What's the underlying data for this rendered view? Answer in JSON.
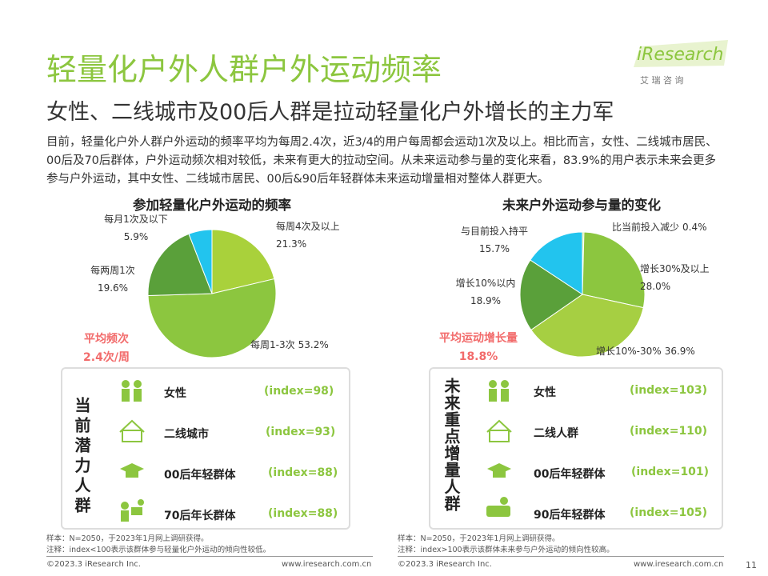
{
  "header": {
    "title": "轻量化户外人群户外运动频率",
    "subtitle": "女性、二线城市及00后人群是拉动轻量化户外增长的主力军",
    "logo": "iResearch",
    "logo_sub": "艾 瑞 咨 询"
  },
  "paragraph": "目前，轻量化户外人群户外运动的频率平均为每周2.4次，近3/4的用户每周都会运动1次及以上。相比而言，女性、二线城市居民、00后及70后群体，户外运动频次相对较低，未来有更大的拉动空间。从未来运动参与量的变化来看，83.9%的用户表示未来会更多参与户外运动，其中女性、二线城市居民、00后&90后年轻群体未来运动增量相对整体人群更大。",
  "chart_data": [
    {
      "type": "pie",
      "title": "参加轻量化户外运动的频率",
      "categories": [
        "每周4次及以上",
        "每周1-3次",
        "每两周1次",
        "每月1次及以下"
      ],
      "values": [
        21.3,
        53.2,
        19.6,
        5.9
      ],
      "value_labels": [
        "21.3%",
        "53.2%",
        "19.6%",
        "5.9%"
      ],
      "colors": [
        "#a9d13b",
        "#8cc63f",
        "#5aa03a",
        "#22c4ee"
      ],
      "annotation": [
        "平均频次",
        "2.4次/周"
      ]
    },
    {
      "type": "pie",
      "title": "未来户外运动参与量的变化",
      "categories": [
        "比当前投入减少",
        "增长30%及以上",
        "增长10%-30%",
        "增长10%以内",
        "与目前投入持平"
      ],
      "values": [
        0.4,
        28.0,
        36.9,
        18.9,
        15.7
      ],
      "value_labels": [
        "0.4%",
        "28.0%",
        "36.9%",
        "18.9%",
        "15.7%"
      ],
      "colors": [
        "#c8e06a",
        "#8cc63f",
        "#a6cf42",
        "#5aa03a",
        "#22c4ee"
      ],
      "annotation": [
        "平均运动增长量",
        "18.8%"
      ]
    }
  ],
  "panels": [
    {
      "heading": "当前潜力人群",
      "rows": [
        [
          "女性",
          "(index=98)"
        ],
        [
          "二线城市",
          "(index=93)"
        ],
        [
          "00后年轻群体",
          "(index=88)"
        ],
        [
          "70后年长群体",
          "(index=88)"
        ]
      ],
      "notes": [
        "样本：N=2050，于2023年1月网上调研获得。",
        "注释：index<100表示该群体参与轻量化户外运动的倾向性较低。"
      ]
    },
    {
      "heading": "未来重点增量人群",
      "rows": [
        [
          "女性",
          "(index=103)"
        ],
        [
          "二线人群",
          "(index=110)"
        ],
        [
          "00后年轻群体",
          "(index=101)"
        ],
        [
          "90后年轻群体",
          "(index=105)"
        ]
      ],
      "notes": [
        "样本：N=2050，于2023年1月网上调研获得。",
        "注释：index>100表示该群体未来参与户外运动的倾向性较高。"
      ]
    }
  ],
  "footer": {
    "copyright": "©2023.3 iResearch Inc.",
    "url": "www.iresearch.com.cn",
    "page": "11"
  }
}
